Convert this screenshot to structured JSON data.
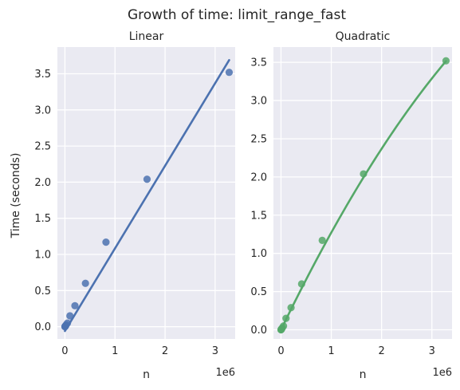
{
  "figure": {
    "suptitle": "Growth of time: limit_range_fast",
    "ylabel": "Time (seconds)",
    "colors": {
      "background": "#eaeaf2",
      "grid": "#ffffff",
      "text": "#262626"
    }
  },
  "chart_data": [
    {
      "type": "scatter",
      "title": "Linear",
      "xlabel": "n",
      "ylabel": "Time (seconds)",
      "x_offset_text": "1e6",
      "xlim": [
        -0.15,
        3.4
      ],
      "ylim": [
        -0.17,
        3.87
      ],
      "x_ticks": [
        0,
        1,
        2,
        3
      ],
      "x_tick_labels": [
        "0",
        "1",
        "2",
        "3"
      ],
      "y_ticks": [
        0.0,
        0.5,
        1.0,
        1.5,
        2.0,
        2.5,
        3.0,
        3.5
      ],
      "y_tick_labels": [
        "0.0",
        "0.5",
        "1.0",
        "1.5",
        "2.0",
        "2.5",
        "3.0",
        "3.5"
      ],
      "color": "#4c72b0",
      "fit": "linear",
      "fit_line": {
        "x": [
          0.0,
          3.28
        ],
        "y": [
          -0.06,
          3.69
        ]
      },
      "points": [
        {
          "x": 0.0,
          "y": 0.0
        },
        {
          "x": 0.003,
          "y": 0.003
        },
        {
          "x": 0.006,
          "y": 0.006
        },
        {
          "x": 0.013,
          "y": 0.012
        },
        {
          "x": 0.025,
          "y": 0.025
        },
        {
          "x": 0.05,
          "y": 0.05
        },
        {
          "x": 0.1,
          "y": 0.15
        },
        {
          "x": 0.2,
          "y": 0.29
        },
        {
          "x": 0.41,
          "y": 0.6
        },
        {
          "x": 0.82,
          "y": 1.17
        },
        {
          "x": 1.64,
          "y": 2.04
        },
        {
          "x": 3.28,
          "y": 3.52
        }
      ]
    },
    {
      "type": "scatter",
      "title": "Quadratic",
      "xlabel": "n",
      "x_offset_text": "1e6",
      "xlim": [
        -0.15,
        3.4
      ],
      "ylim": [
        -0.12,
        3.7
      ],
      "x_ticks": [
        0,
        1,
        2,
        3
      ],
      "x_tick_labels": [
        "0",
        "1",
        "2",
        "3"
      ],
      "y_ticks": [
        0.0,
        0.5,
        1.0,
        1.5,
        2.0,
        2.5,
        3.0,
        3.5
      ],
      "y_tick_labels": [
        "0.0",
        "0.5",
        "1.0",
        "1.5",
        "2.0",
        "2.5",
        "3.0",
        "3.5"
      ],
      "color": "#55a868",
      "fit": "quadratic",
      "fit_coefficients": {
        "a": -0.0878,
        "b": 1.36,
        "c": 0.0
      },
      "fit_range": [
        0.0,
        3.28
      ],
      "points": [
        {
          "x": 0.0,
          "y": 0.0
        },
        {
          "x": 0.003,
          "y": 0.003
        },
        {
          "x": 0.006,
          "y": 0.006
        },
        {
          "x": 0.013,
          "y": 0.012
        },
        {
          "x": 0.025,
          "y": 0.025
        },
        {
          "x": 0.05,
          "y": 0.05
        },
        {
          "x": 0.1,
          "y": 0.15
        },
        {
          "x": 0.2,
          "y": 0.29
        },
        {
          "x": 0.41,
          "y": 0.6
        },
        {
          "x": 0.82,
          "y": 1.17
        },
        {
          "x": 1.64,
          "y": 2.04
        },
        {
          "x": 3.28,
          "y": 3.52
        }
      ]
    }
  ]
}
